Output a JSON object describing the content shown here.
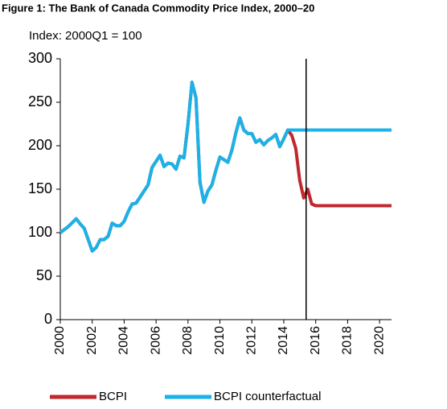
{
  "chart_data": {
    "type": "line",
    "title": "Figure 1: The Bank of Canada Commodity Price Index, 2000–20",
    "subtitle": "Index: 2000Q1 = 100",
    "x": [
      2000,
      2000.5,
      2001,
      2001.25,
      2001.5,
      2001.75,
      2002,
      2002.25,
      2002.5,
      2002.75,
      2003,
      2003.25,
      2003.5,
      2003.75,
      2004,
      2004.25,
      2004.5,
      2004.75,
      2005,
      2005.5,
      2005.75,
      2006.25,
      2006.5,
      2006.75,
      2007,
      2007.25,
      2007.5,
      2007.75,
      2008,
      2008.25,
      2008.5,
      2008.75,
      2009,
      2009.25,
      2009.5,
      2009.75,
      2010,
      2010.25,
      2010.5,
      2010.75,
      2011,
      2011.25,
      2011.5,
      2011.75,
      2012,
      2012.25,
      2012.5,
      2012.75,
      2013,
      2013.25,
      2013.5,
      2013.75,
      2014,
      2014.25,
      2014.5,
      2014.75,
      2015,
      2015.25,
      2015.5,
      2015.75,
      2016,
      2020.75
    ],
    "series": [
      {
        "name": "BCPI",
        "color": "#c0282d",
        "values": [
          100,
          107,
          116,
          110,
          105,
          92,
          79,
          83,
          92,
          92,
          96,
          111,
          108,
          108,
          113,
          124,
          133,
          134,
          141,
          155,
          175,
          189,
          176,
          180,
          179,
          173,
          188,
          186,
          225,
          273,
          255,
          158,
          135,
          148,
          155,
          172,
          187,
          184,
          181,
          195,
          215,
          232,
          218,
          214,
          214,
          204,
          207,
          201,
          206,
          209,
          213,
          199,
          208,
          218,
          212,
          197,
          160,
          140,
          150,
          133,
          131,
          131
        ]
      },
      {
        "name": "BCPI counterfactual",
        "color": "#1ab2e8",
        "values": [
          100,
          107,
          116,
          110,
          105,
          92,
          79,
          83,
          92,
          92,
          96,
          111,
          108,
          108,
          113,
          124,
          133,
          134,
          141,
          155,
          175,
          189,
          176,
          180,
          179,
          173,
          188,
          186,
          225,
          273,
          255,
          158,
          135,
          148,
          155,
          172,
          187,
          184,
          181,
          195,
          215,
          232,
          218,
          214,
          214,
          204,
          207,
          201,
          206,
          209,
          213,
          199,
          208,
          218,
          218,
          218,
          218,
          218,
          218,
          218,
          218,
          218
        ]
      }
    ],
    "xlim": [
      2000,
      2020.75
    ],
    "xticks": [
      2000,
      2002,
      2004,
      2006,
      2008,
      2010,
      2012,
      2014,
      2016,
      2018,
      2020
    ],
    "ylim": [
      0,
      300
    ],
    "yticks": [
      0,
      50,
      100,
      150,
      200,
      250,
      300
    ],
    "reference_line": {
      "x": 2015.4,
      "color": "#000000"
    },
    "legend": "bottom",
    "grid": false
  }
}
